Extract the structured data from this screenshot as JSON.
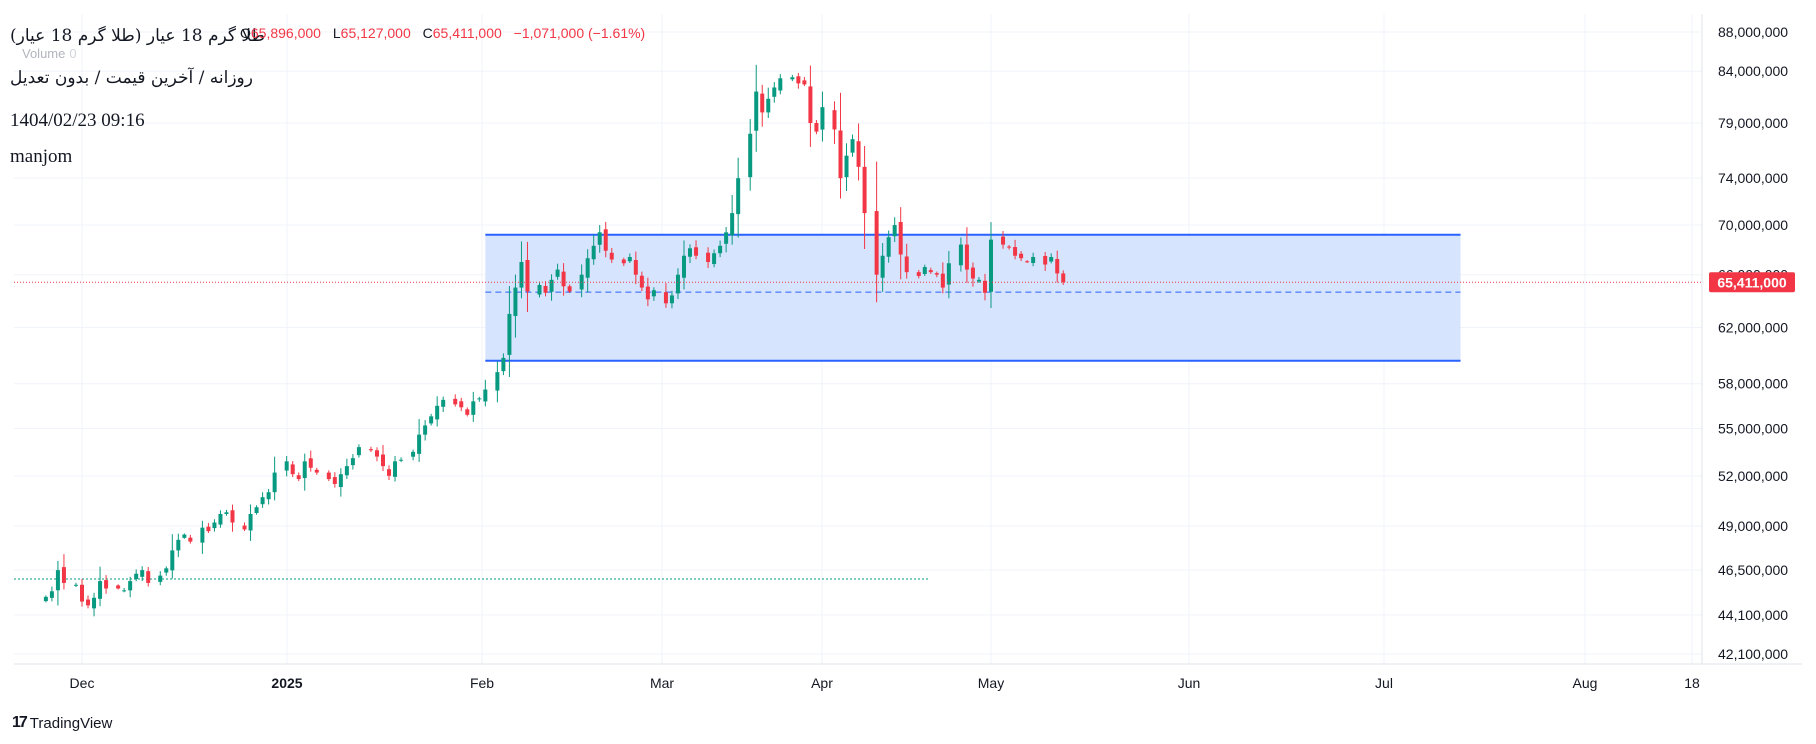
{
  "header": {
    "title": "طلا گرم 18 عیار (طلا گرم 18 عیار)",
    "ohlc": {
      "open_label": "O",
      "open": "65,896,000",
      "low_label": "L",
      "low": "65,127,000",
      "close_label": "C",
      "close": "65,411,000",
      "change": "−1,071,000 (−1.61%)"
    },
    "volume_label": "Volume",
    "volume_value": "0",
    "subtitle": "روزانه / آخرین قیمت / بدون تعدیل",
    "timestamp": "1404/02/23 09:16",
    "author": "manjom"
  },
  "logo": {
    "text": "TradingView"
  },
  "colors": {
    "up": "#089981",
    "down": "#f23645",
    "box_fill": "#d3e1fd",
    "box_line": "#2962ff",
    "grid": "#f0f3fa",
    "axis_text": "#131722"
  },
  "chart_data": {
    "type": "candlestick",
    "title": "طلا گرم 18 عیار (طلا گرم 18 عیار)",
    "interval": "daily",
    "x_axis": {
      "ticks": [
        "Dec",
        "2025",
        "Feb",
        "Mar",
        "Apr",
        "May",
        "Jun",
        "Jul",
        "Aug",
        "18"
      ]
    },
    "y_axis": {
      "ticks": [
        "42,100,000",
        "44,100,000",
        "46,500,000",
        "49,000,000",
        "52,000,000",
        "55,000,000",
        "58,000,000",
        "62,000,000",
        "66,000,000",
        "70,000,000",
        "74,000,000",
        "79,000,000",
        "84,000,000",
        "88,000,000"
      ],
      "scale": "log",
      "range": [
        41900000,
        88300000
      ]
    },
    "last_price": {
      "value": 65411000,
      "label": "65,411,000"
    },
    "rectangle": {
      "top": 69200000,
      "bottom": 59600000,
      "mid": 64650000,
      "x_start": "2025-02-06",
      "x_end": "2025-07-18"
    },
    "series_dates": {
      "start": "2024-11-25",
      "end": "2025-05-13"
    },
    "closes": [
      45050000,
      45350000,
      46500000,
      45800000,
      45700000,
      44800000,
      44600000,
      45000000,
      45900000,
      45500000,
      45500000,
      45400000,
      45900000,
      46300000,
      46500000,
      45800000,
      46200000,
      46600000,
      47600000,
      48200000,
      48500000,
      48100000,
      48900000,
      48700000,
      49200000,
      49700000,
      49800000,
      49200000,
      48800000,
      49700000,
      50100000,
      50700000,
      51000000,
      52200000,
      52900000,
      52100000,
      51800000,
      52900000,
      52500000,
      52200000,
      51800000,
      51500000,
      52100000,
      52600000,
      53100000,
      53800000,
      53600000,
      53200000,
      52600000,
      52000000,
      52900000,
      53000000,
      53500000,
      54600000,
      55200000,
      55800000,
      56500000,
      56900000,
      56600000,
      56400000,
      55900000,
      56800000,
      57000000,
      57600000,
      58800000,
      59800000,
      63000000,
      65000000,
      67000000,
      64700000,
      65200000,
      64600000,
      65600000,
      66400000,
      65100000,
      64700000,
      66000000,
      67300000,
      68300000,
      69400000,
      67900000,
      67200000,
      66900000,
      67400000,
      66000000,
      65000000,
      64100000,
      64800000,
      63800000,
      64400000,
      66000000,
      67500000,
      68100000,
      67500000,
      67000000,
      67700000,
      68300000,
      69400000,
      71000000,
      74000000,
      78000000,
      82000000,
      80000000,
      81300000,
      82400000,
      83300000,
      83400000,
      82800000,
      82700000,
      79000000,
      78200000,
      80500000,
      78400000,
      74000000,
      76000000,
      77500000,
      75000000,
      71000000,
      66000000,
      67500000,
      69000000,
      70000000,
      67600000,
      66200000,
      65900000,
      66600000,
      66200000,
      66000000,
      65000000,
      66900000,
      68400000,
      66400000,
      65700000,
      65600000,
      64600000,
      68800000,
      68400000,
      68200000,
      67500000,
      67300000,
      67000000,
      67400000,
      66800000,
      67400000,
      66100000,
      65411000
    ]
  }
}
